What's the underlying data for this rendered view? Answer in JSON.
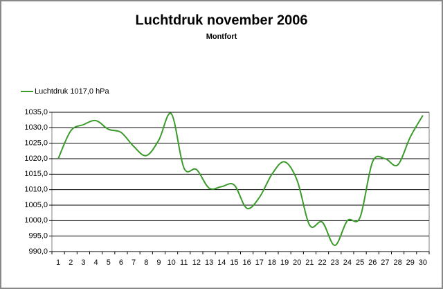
{
  "chart_data": {
    "type": "line",
    "title": "Luchtdruk november 2006",
    "subtitle": "Montfort",
    "categories": [
      "1",
      "2",
      "3",
      "4",
      "5",
      "6",
      "7",
      "8",
      "9",
      "10",
      "11",
      "12",
      "13",
      "14",
      "15",
      "16",
      "17",
      "18",
      "19",
      "20",
      "21",
      "22",
      "23",
      "24",
      "25",
      "26",
      "27",
      "28",
      "29",
      "30"
    ],
    "series": [
      {
        "name": "Luchtdruk 1017,0 hPa",
        "color": "#3a9a2a",
        "values": [
          1020,
          1029,
          1031,
          1032.3,
          1029.5,
          1028.5,
          1024,
          1021,
          1026,
          1034.5,
          1017,
          1016.5,
          1010.5,
          1011,
          1011.5,
          1004,
          1007.5,
          1015,
          1019,
          1013,
          998.5,
          999.5,
          992,
          1000,
          1001,
          1019,
          1020,
          1018,
          1027,
          1034
        ]
      }
    ],
    "ylim": [
      990,
      1035
    ],
    "yticks": [
      {
        "value": 990,
        "label": "990,0"
      },
      {
        "value": 995,
        "label": "995,0"
      },
      {
        "value": 1000,
        "label": "1000,0"
      },
      {
        "value": 1005,
        "label": "1005,0"
      },
      {
        "value": 1010,
        "label": "1010,0"
      },
      {
        "value": 1015,
        "label": "1015,0"
      },
      {
        "value": 1020,
        "label": "1020,0"
      },
      {
        "value": 1025,
        "label": "1025,0"
      },
      {
        "value": 1030,
        "label": "1030,0"
      },
      {
        "value": 1035,
        "label": "1035,0"
      }
    ],
    "grid": true,
    "legend": "top-left"
  }
}
